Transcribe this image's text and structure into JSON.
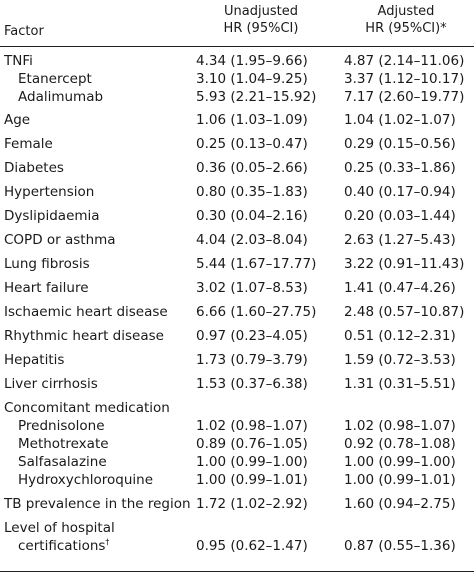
{
  "header": {
    "factor": "Factor",
    "col1_line1": "Unadjusted",
    "col1_line2": "HR (95%CI)",
    "col2_line1": "Adjusted",
    "col2_line2": "HR (95%CI)*"
  },
  "rows": [
    {
      "label": "TNFi",
      "unadj": "4.34 (1.95–9.66)",
      "adj": "4.87 (2.14–11.06)"
    },
    {
      "label": "Etanercept",
      "unadj": "3.10 (1.04–9.25)",
      "adj": "3.37 (1.12–10.17)"
    },
    {
      "label": "Adalimumab",
      "unadj": "5.93 (2.21–15.92)",
      "adj": "7.17 (2.60–19.77)"
    },
    {
      "label": "Age",
      "unadj": "1.06 (1.03–1.09)",
      "adj": "1.04 (1.02–1.07)"
    },
    {
      "label": "Female",
      "unadj": "0.25 (0.13–0.47)",
      "adj": "0.29 (0.15–0.56)"
    },
    {
      "label": "Diabetes",
      "unadj": "0.36 (0.05–2.66)",
      "adj": "0.25 (0.33–1.86)"
    },
    {
      "label": "Hypertension",
      "unadj": "0.80 (0.35–1.83)",
      "adj": "0.40 (0.17–0.94)"
    },
    {
      "label": "Dyslipidaemia",
      "unadj": "0.30 (0.04–2.16)",
      "adj": "0.20 (0.03–1.44)"
    },
    {
      "label": "COPD or asthma",
      "unadj": "4.04 (2.03–8.04)",
      "adj": "2.63 (1.27–5.43)"
    },
    {
      "label": "Lung fibrosis",
      "unadj": "5.44 (1.67–17.77)",
      "adj": "3.22 (0.91–11.43)"
    },
    {
      "label": "Heart failure",
      "unadj": "3.02 (1.07–8.53)",
      "adj": "1.41 (0.47–4.26)"
    },
    {
      "label": "Ischaemic heart disease",
      "unadj": "6.66 (1.60–27.75)",
      "adj": "2.48 (0.57–10.87)"
    },
    {
      "label": "Rhythmic heart disease",
      "unadj": "0.97 (0.23–4.05)",
      "adj": "0.51 (0.12–2.31)"
    },
    {
      "label": "Hepatitis",
      "unadj": "1.73 (0.79–3.79)",
      "adj": "1.59 (0.72–3.53)"
    },
    {
      "label": "Liver cirrhosis",
      "unadj": "1.53 (0.37–6.38)",
      "adj": "1.31 (0.31–5.51)"
    },
    {
      "label": "Concomitant medication",
      "unadj": "",
      "adj": ""
    },
    {
      "label": "Prednisolone",
      "unadj": "1.02 (0.98–1.07)",
      "adj": "1.02 (0.98–1.07)"
    },
    {
      "label": "Methotrexate",
      "unadj": "0.89 (0.76–1.05)",
      "adj": "0.92 (0.78–1.08)"
    },
    {
      "label": "Salfasalazine",
      "unadj": "1.00 (0.99–1.00)",
      "adj": "1.00 (0.99–1.00)"
    },
    {
      "label": "Hydroxychloroquine",
      "unadj": "1.00 (0.99–1.01)",
      "adj": "1.00 (0.99–1.01)"
    },
    {
      "label": "TB prevalence in the region",
      "unadj": "1.72 (1.02–2.92)",
      "adj": "1.60 (0.94–2.75)"
    },
    {
      "label": "Level of hospital",
      "unadj": "",
      "adj": ""
    },
    {
      "label": "certifications",
      "label_sup": "†",
      "unadj": "0.95 (0.62–1.47)",
      "adj": "0.87 (0.55–1.36)"
    }
  ]
}
